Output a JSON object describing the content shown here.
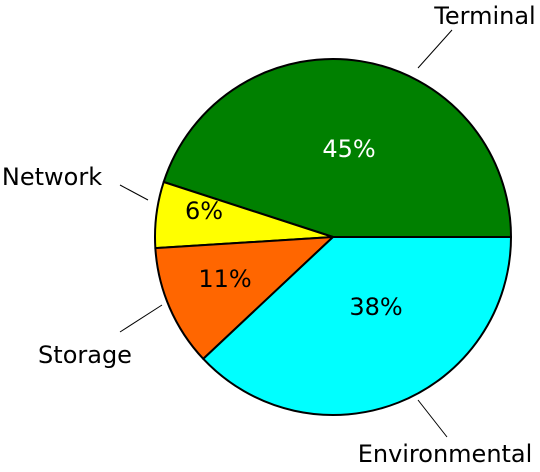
{
  "chart_data": {
    "type": "pie",
    "categories": [
      "Terminal",
      "Network",
      "Storage",
      "Environmental"
    ],
    "values": [
      45,
      6,
      11,
      38
    ],
    "value_labels": [
      "45%",
      "6%",
      "11%",
      "38%"
    ],
    "colors": [
      "#008000",
      "#ffff00",
      "#ff6600",
      "#00ffff"
    ]
  }
}
